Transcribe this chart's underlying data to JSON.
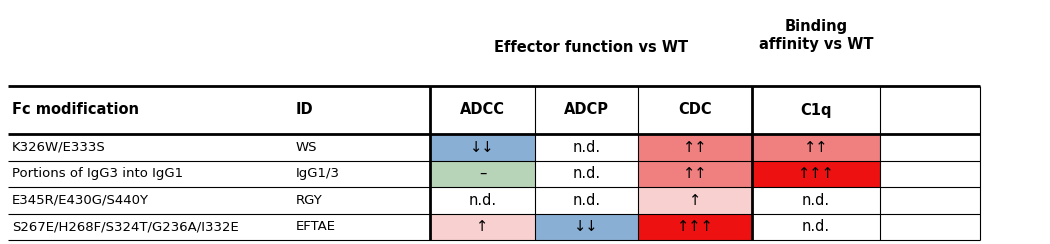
{
  "header_group1": "Effector function vs WT",
  "header_group2": "Binding\naffinity vs WT",
  "col_headers_left": [
    "Fc modification",
    "ID"
  ],
  "col_headers_data": [
    "ADCC",
    "ADCP",
    "CDC",
    "C1q"
  ],
  "rows": [
    {
      "fc_mod": "K326W/E333S",
      "id": "WS",
      "adcc": "↓↓",
      "adcp": "n.d.",
      "cdc": "↑↑",
      "c1q": "↑↑",
      "adcc_color": "#8aafd4",
      "adcp_color": null,
      "cdc_color": "#f08080",
      "c1q_color": "#f08080"
    },
    {
      "fc_mod": "Portions of IgG3 into IgG1",
      "id": "IgG1/3",
      "adcc": "–",
      "adcp": "n.d.",
      "cdc": "↑↑",
      "c1q": "↑↑↑",
      "adcc_color": "#b8d4b8",
      "adcp_color": null,
      "cdc_color": "#f08080",
      "c1q_color": "#ee1111"
    },
    {
      "fc_mod": "E345R/E430G/S440Y",
      "id": "RGY",
      "adcc": "n.d.",
      "adcp": "n.d.",
      "cdc": "↑",
      "c1q": "n.d.",
      "adcc_color": null,
      "adcp_color": null,
      "cdc_color": "#f9d0d0",
      "c1q_color": null
    },
    {
      "fc_mod": "S267E/H268F/S324T/G236A/I332E",
      "id": "EFTAE",
      "adcc": "↑",
      "adcp": "↓↓",
      "cdc": "↑↑↑",
      "c1q": "n.d.",
      "adcc_color": "#f9d0d0",
      "adcp_color": "#8aafd4",
      "cdc_color": "#ee1111",
      "c1q_color": null
    }
  ],
  "bg": "#ffffff",
  "lw_thick": 2.0,
  "lw_thin": 0.8,
  "font_header_group": 10.5,
  "font_col_header": 10.5,
  "font_body": 9.5,
  "font_cell": 10.5
}
